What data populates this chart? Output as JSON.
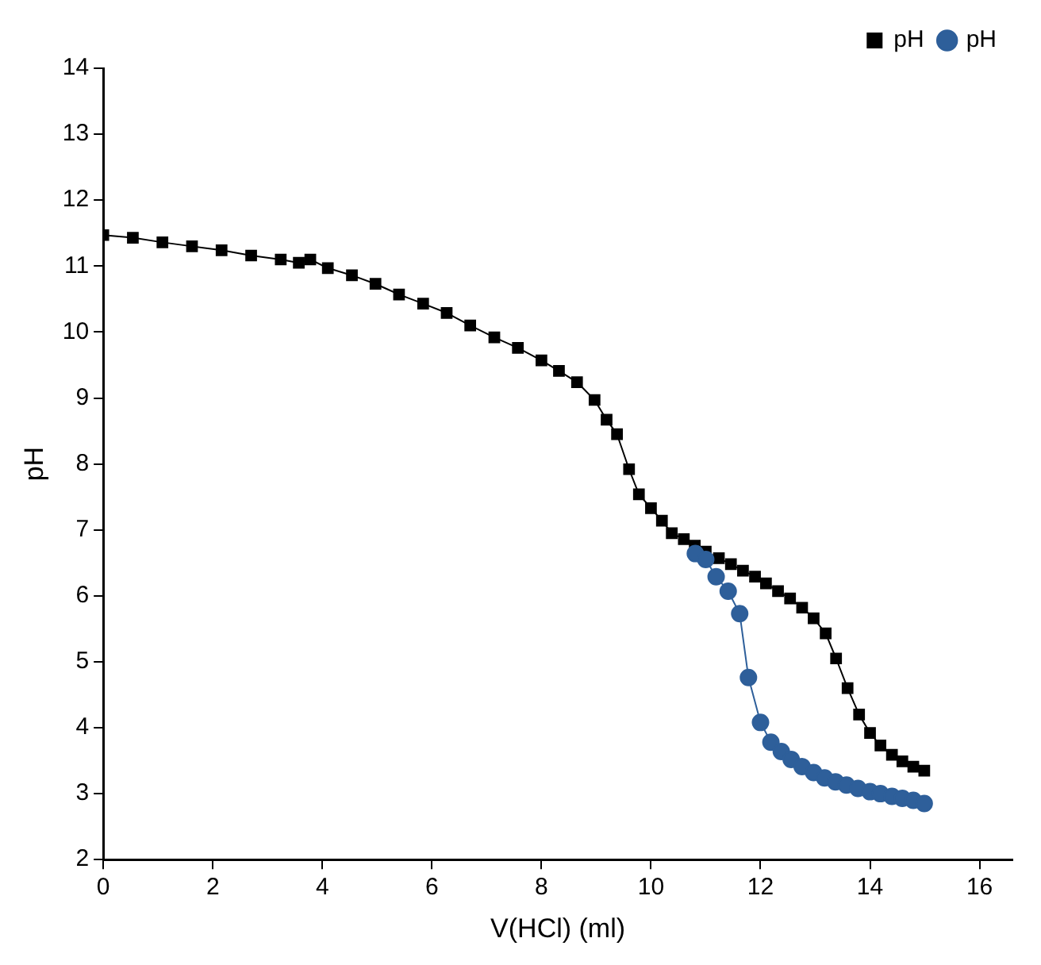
{
  "chart_data": {
    "type": "line",
    "xlabel": "V(HCl) (ml)",
    "ylabel": "pH",
    "xlim": [
      0,
      16.6
    ],
    "xticks": [
      0,
      2,
      4,
      6,
      8,
      10,
      12,
      14,
      16
    ],
    "ylim": [
      2,
      14
    ],
    "yticks": [
      2,
      3,
      4,
      5,
      6,
      7,
      8,
      9,
      10,
      11,
      12,
      13,
      14
    ],
    "grid": false,
    "legend": "top right",
    "line_style": "solid",
    "series": [
      {
        "name": "pH",
        "color": "#000000",
        "marker": "square",
        "x": [
          0,
          0.54,
          1.08,
          1.62,
          2.16,
          2.7,
          3.24,
          3.57,
          3.78,
          4.1,
          4.54,
          4.97,
          5.4,
          5.84,
          6.27,
          6.7,
          7.14,
          7.57,
          8.0,
          8.32,
          8.65,
          8.97,
          9.19,
          9.38,
          9.6,
          9.78,
          10.0,
          10.2,
          10.38,
          10.6,
          10.8,
          11.0,
          11.24,
          11.46,
          11.68,
          11.9,
          12.1,
          12.32,
          12.54,
          12.76,
          12.97,
          13.19,
          13.38,
          13.59,
          13.8,
          14.0,
          14.19,
          14.4,
          14.59,
          14.79,
          14.99
        ],
        "values": [
          11.47,
          11.43,
          11.36,
          11.3,
          11.24,
          11.16,
          11.1,
          11.05,
          11.1,
          10.97,
          10.86,
          10.73,
          10.57,
          10.43,
          10.29,
          10.1,
          9.92,
          9.76,
          9.57,
          9.41,
          9.24,
          8.97,
          8.67,
          8.45,
          7.92,
          7.54,
          7.33,
          7.14,
          6.95,
          6.86,
          6.76,
          6.67,
          6.57,
          6.48,
          6.38,
          6.29,
          6.19,
          6.07,
          5.96,
          5.82,
          5.66,
          5.43,
          5.05,
          4.6,
          4.2,
          3.92,
          3.73,
          3.59,
          3.49,
          3.41,
          3.35
        ]
      },
      {
        "name": "pH",
        "color": "#2e5f9a",
        "marker": "circle",
        "x": [
          10.81,
          11.0,
          11.19,
          11.41,
          11.62,
          11.78,
          12.0,
          12.19,
          12.38,
          12.56,
          12.76,
          12.97,
          13.17,
          13.37,
          13.57,
          13.78,
          14.0,
          14.19,
          14.4,
          14.59,
          14.79,
          14.99
        ],
        "values": [
          6.64,
          6.55,
          6.29,
          6.07,
          5.73,
          4.76,
          4.08,
          3.78,
          3.64,
          3.52,
          3.41,
          3.32,
          3.24,
          3.18,
          3.13,
          3.08,
          3.03,
          3.0,
          2.96,
          2.93,
          2.9,
          2.85
        ]
      }
    ]
  }
}
